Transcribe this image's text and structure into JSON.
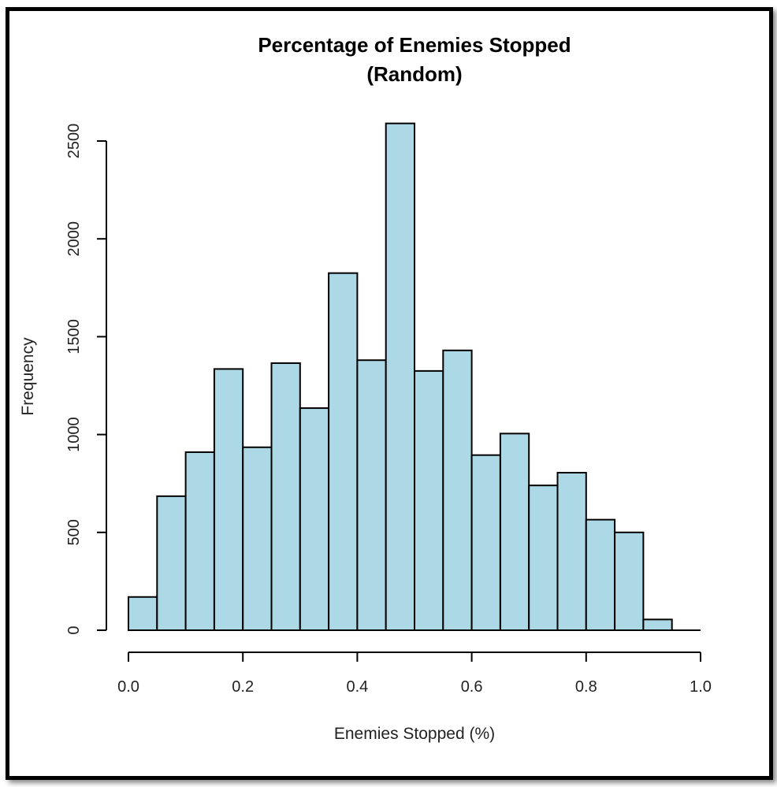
{
  "chart_data": {
    "type": "bar",
    "subtype": "histogram",
    "title": "Percentage of Enemies Stopped",
    "subtitle": "(Random)",
    "xlabel": "Enemies Stopped (%)",
    "ylabel": "Frequency",
    "xlim": [
      0.0,
      1.0
    ],
    "ylim": [
      0,
      2500
    ],
    "x_ticks": [
      "0.0",
      "0.2",
      "0.4",
      "0.6",
      "0.8",
      "1.0"
    ],
    "y_ticks": [
      "0",
      "500",
      "1000",
      "1500",
      "2000",
      "2500"
    ],
    "bins": [
      {
        "start": 0.0,
        "end": 0.05,
        "count": 170
      },
      {
        "start": 0.05,
        "end": 0.1,
        "count": 685
      },
      {
        "start": 0.1,
        "end": 0.15,
        "count": 910
      },
      {
        "start": 0.15,
        "end": 0.2,
        "count": 1335
      },
      {
        "start": 0.2,
        "end": 0.25,
        "count": 935
      },
      {
        "start": 0.25,
        "end": 0.3,
        "count": 1365
      },
      {
        "start": 0.3,
        "end": 0.35,
        "count": 1135
      },
      {
        "start": 0.35,
        "end": 0.4,
        "count": 1825
      },
      {
        "start": 0.4,
        "end": 0.45,
        "count": 1380
      },
      {
        "start": 0.45,
        "end": 0.5,
        "count": 2590
      },
      {
        "start": 0.5,
        "end": 0.55,
        "count": 1325
      },
      {
        "start": 0.55,
        "end": 0.6,
        "count": 1430
      },
      {
        "start": 0.6,
        "end": 0.65,
        "count": 895
      },
      {
        "start": 0.65,
        "end": 0.7,
        "count": 1005
      },
      {
        "start": 0.7,
        "end": 0.75,
        "count": 740
      },
      {
        "start": 0.75,
        "end": 0.8,
        "count": 805
      },
      {
        "start": 0.8,
        "end": 0.85,
        "count": 565
      },
      {
        "start": 0.85,
        "end": 0.9,
        "count": 500
      },
      {
        "start": 0.9,
        "end": 0.95,
        "count": 55
      },
      {
        "start": 0.95,
        "end": 1.0,
        "count": 0
      }
    ],
    "bar_fill": "#add8e6",
    "bar_stroke": "#000000",
    "grid": false,
    "legend": "none"
  }
}
